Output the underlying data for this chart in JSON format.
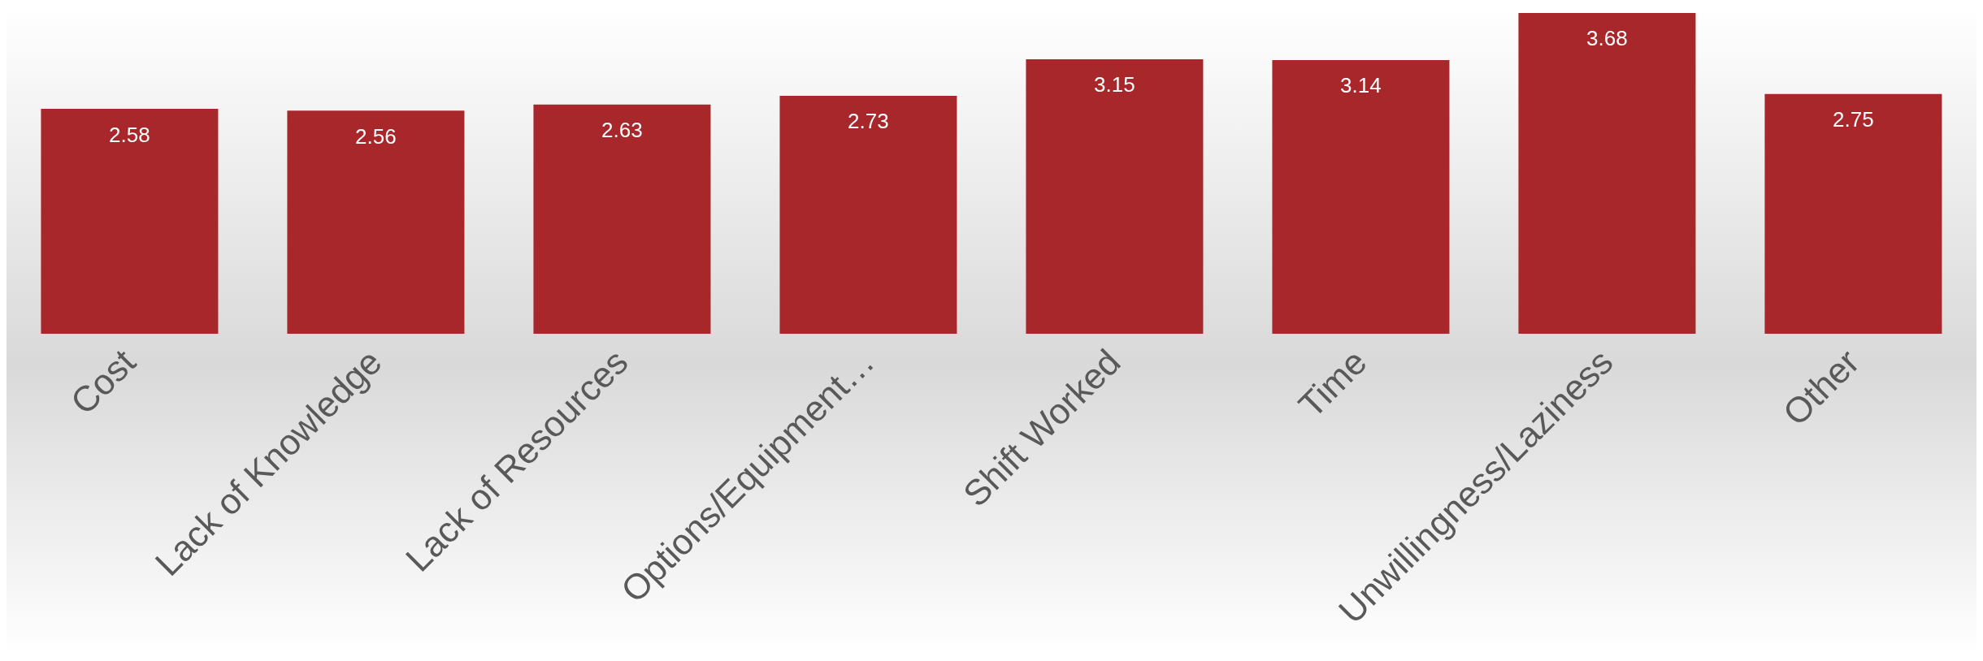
{
  "chart_data": {
    "type": "bar",
    "categories": [
      "Cost",
      "Lack of Knowledge",
      "Lack of Resources",
      "Options/Equipment…",
      "Shift Worked",
      "Time",
      "Unwillingness/Laziness",
      "Other"
    ],
    "values": [
      2.58,
      2.56,
      2.63,
      2.73,
      3.15,
      3.14,
      3.68,
      2.75
    ],
    "color": "#a8272b",
    "tick_labels": "x",
    "data_labels": true,
    "grid": false,
    "legend": false
  }
}
